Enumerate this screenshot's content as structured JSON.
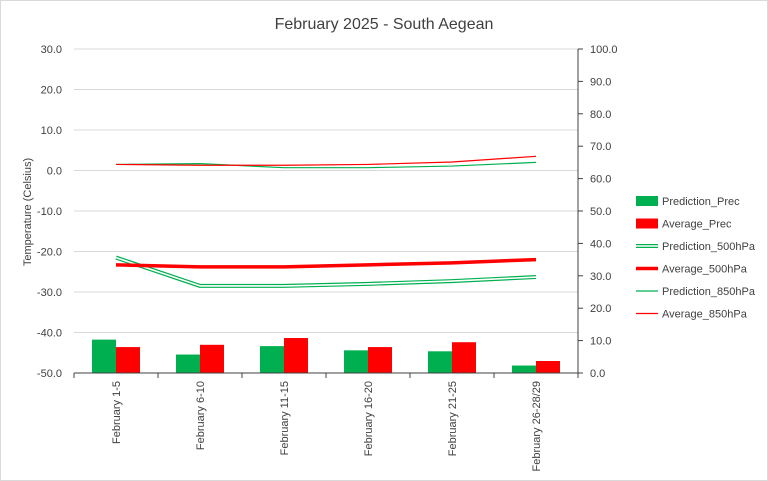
{
  "chart_data": {
    "type": "bar+line",
    "title": "February 2025 - South Aegean",
    "ylabel_left": "Temperature (Celsius)",
    "ylim_left": [
      -50,
      30
    ],
    "yticks_left": [
      "30.0",
      "20.0",
      "10.0",
      "0.0",
      "-10.0",
      "-20.0",
      "-30.0",
      "-40.0",
      "-50.0"
    ],
    "ylim_right": [
      0,
      100
    ],
    "yticks_right": [
      "100.0",
      "90.0",
      "80.0",
      "70.0",
      "60.0",
      "50.0",
      "40.0",
      "30.0",
      "20.0",
      "10.0",
      "0.0"
    ],
    "categories": [
      "February 1-5",
      "February 6-10",
      "February 11-15",
      "February 16-20",
      "February 21-25",
      "February 26-28/29"
    ],
    "legend_position": "right",
    "grid": "horizontal",
    "series": [
      {
        "name": "Prediction_Prec",
        "kind": "bar",
        "axis": "right",
        "color": "#00b050",
        "values": [
          10.3,
          5.7,
          8.3,
          7.0,
          6.7,
          2.3
        ]
      },
      {
        "name": "Average_Prec",
        "kind": "bar",
        "axis": "right",
        "color": "#ff0000",
        "values": [
          8.0,
          8.7,
          10.8,
          8.0,
          9.5,
          3.7
        ]
      },
      {
        "name": "Prediction_500hPa",
        "kind": "line",
        "axis": "left",
        "color": "#00b050",
        "style": "double",
        "values": [
          -21.5,
          -28.5,
          -28.5,
          -28.0,
          -27.3,
          -26.3
        ]
      },
      {
        "name": "Average_500hPa",
        "kind": "line",
        "axis": "left",
        "color": "#ff0000",
        "style": "thick",
        "values": [
          -23.3,
          -23.8,
          -23.8,
          -23.3,
          -22.8,
          -22.0
        ]
      },
      {
        "name": "Prediction_850hPa",
        "kind": "line",
        "axis": "left",
        "color": "#00b050",
        "style": "thin",
        "values": [
          1.5,
          1.7,
          0.7,
          0.7,
          1.1,
          2.0
        ]
      },
      {
        "name": "Average_850hPa",
        "kind": "line",
        "axis": "left",
        "color": "#ff0000",
        "style": "thin",
        "values": [
          1.5,
          1.3,
          1.3,
          1.5,
          2.1,
          3.5
        ]
      }
    ]
  }
}
